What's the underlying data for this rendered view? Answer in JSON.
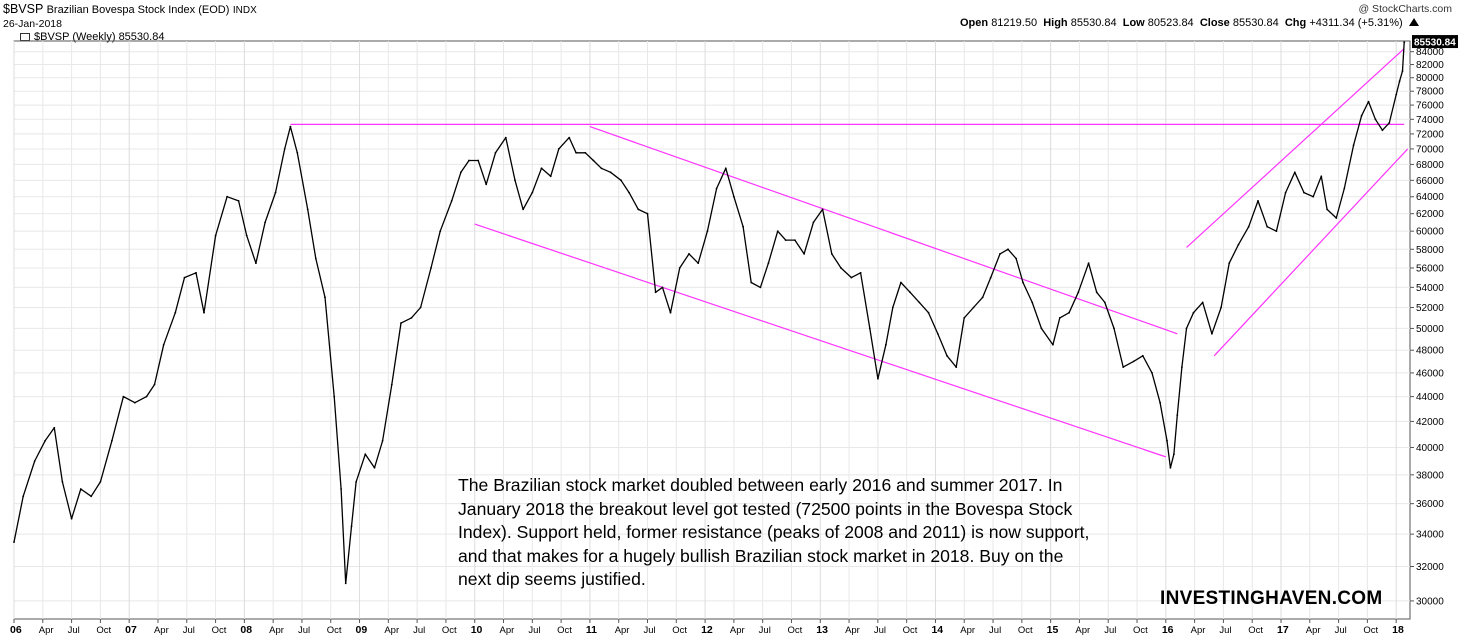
{
  "header": {
    "symbol": "$BVSP",
    "name": "Brazilian Bovespa Stock Index (EOD)",
    "exchange": "INDX",
    "date": "26-Jan-2018",
    "copyright": "@ StockCharts.com",
    "open_label": "Open",
    "open": "81219.50",
    "high_label": "High",
    "high": "85530.84",
    "low_label": "Low",
    "low": "80523.84",
    "close_label": "Close",
    "close": "85530.84",
    "chg_label": "Chg",
    "chg": "+4311.34 (+5.31%)",
    "chg_icon": "triangle-up-icon"
  },
  "legend": {
    "series": "$BVSP (Weekly) 85530.84"
  },
  "annotation": "The Brazilian stock market doubled between early 2016 and summer 2017. In January 2018 the breakout level got tested (72500 points in the Bovespa Stock Index). Support held, former resistance (peaks of 2008 and 2011) is now support, and that makes for a hugely bullish Brazilian stock market in 2018. Buy on the next dip seems justified.",
  "brand": "INVESTINGHAVEN.COM",
  "colors": {
    "line": "#000000",
    "trendline": "#ff33ff",
    "grid": "#e8e8e8",
    "price_tag_bg": "#000000",
    "price_tag_text": "#ffffff"
  },
  "chart_data": {
    "type": "line",
    "title": "$BVSP (Weekly) 85530.84",
    "xlabel": "",
    "ylabel": "",
    "x_range": [
      2006.0,
      2018.12
    ],
    "ylim": [
      29000,
      85700
    ],
    "y_scale": "log",
    "y_axis_position": "right",
    "grid": true,
    "y_ticks": [
      30000,
      32000,
      34000,
      36000,
      38000,
      40000,
      42000,
      44000,
      46000,
      48000,
      50000,
      52000,
      54000,
      56000,
      58000,
      60000,
      62000,
      64000,
      66000,
      68000,
      70000,
      72000,
      74000,
      76000,
      78000,
      80000,
      82000,
      84000
    ],
    "x_ticks": [
      {
        "x": 2006.0,
        "label": "06",
        "year": true
      },
      {
        "x": 2006.25,
        "label": "Apr"
      },
      {
        "x": 2006.5,
        "label": "Jul"
      },
      {
        "x": 2006.75,
        "label": "Oct"
      },
      {
        "x": 2007.0,
        "label": "07",
        "year": true
      },
      {
        "x": 2007.25,
        "label": "Apr"
      },
      {
        "x": 2007.5,
        "label": "Jul"
      },
      {
        "x": 2007.75,
        "label": "Oct"
      },
      {
        "x": 2008.0,
        "label": "08",
        "year": true
      },
      {
        "x": 2008.25,
        "label": "Apr"
      },
      {
        "x": 2008.5,
        "label": "Jul"
      },
      {
        "x": 2008.75,
        "label": "Oct"
      },
      {
        "x": 2009.0,
        "label": "09",
        "year": true
      },
      {
        "x": 2009.25,
        "label": "Apr"
      },
      {
        "x": 2009.5,
        "label": "Jul"
      },
      {
        "x": 2009.75,
        "label": "Oct"
      },
      {
        "x": 2010.0,
        "label": "10",
        "year": true
      },
      {
        "x": 2010.25,
        "label": "Apr"
      },
      {
        "x": 2010.5,
        "label": "Jul"
      },
      {
        "x": 2010.75,
        "label": "Oct"
      },
      {
        "x": 2011.0,
        "label": "11",
        "year": true
      },
      {
        "x": 2011.25,
        "label": "Apr"
      },
      {
        "x": 2011.5,
        "label": "Jul"
      },
      {
        "x": 2011.75,
        "label": "Oct"
      },
      {
        "x": 2012.0,
        "label": "12",
        "year": true
      },
      {
        "x": 2012.25,
        "label": "Apr"
      },
      {
        "x": 2012.5,
        "label": "Jul"
      },
      {
        "x": 2012.75,
        "label": "Oct"
      },
      {
        "x": 2013.0,
        "label": "13",
        "year": true
      },
      {
        "x": 2013.25,
        "label": "Apr"
      },
      {
        "x": 2013.5,
        "label": "Jul"
      },
      {
        "x": 2013.75,
        "label": "Oct"
      },
      {
        "x": 2014.0,
        "label": "14",
        "year": true
      },
      {
        "x": 2014.25,
        "label": "Apr"
      },
      {
        "x": 2014.5,
        "label": "Jul"
      },
      {
        "x": 2014.75,
        "label": "Oct"
      },
      {
        "x": 2015.0,
        "label": "15",
        "year": true
      },
      {
        "x": 2015.25,
        "label": "Apr"
      },
      {
        "x": 2015.5,
        "label": "Jul"
      },
      {
        "x": 2015.75,
        "label": "Oct"
      },
      {
        "x": 2016.0,
        "label": "16",
        "year": true
      },
      {
        "x": 2016.25,
        "label": "Apr"
      },
      {
        "x": 2016.5,
        "label": "Jul"
      },
      {
        "x": 2016.75,
        "label": "Oct"
      },
      {
        "x": 2017.0,
        "label": "17",
        "year": true
      },
      {
        "x": 2017.25,
        "label": "Apr"
      },
      {
        "x": 2017.5,
        "label": "Jul"
      },
      {
        "x": 2017.75,
        "label": "Oct"
      },
      {
        "x": 2018.0,
        "label": "18",
        "year": true
      }
    ],
    "series": [
      {
        "values": [
          [
            2006.0,
            33500
          ],
          [
            2006.08,
            36500
          ],
          [
            2006.18,
            39000
          ],
          [
            2006.27,
            40500
          ],
          [
            2006.35,
            41500
          ],
          [
            2006.42,
            37500
          ],
          [
            2006.5,
            35000
          ],
          [
            2006.58,
            37000
          ],
          [
            2006.67,
            36500
          ],
          [
            2006.75,
            37500
          ],
          [
            2006.85,
            40500
          ],
          [
            2006.95,
            44000
          ],
          [
            2007.05,
            43500
          ],
          [
            2007.15,
            44000
          ],
          [
            2007.22,
            45000
          ],
          [
            2007.3,
            48500
          ],
          [
            2007.4,
            51500
          ],
          [
            2007.48,
            55000
          ],
          [
            2007.58,
            55500
          ],
          [
            2007.65,
            51500
          ],
          [
            2007.75,
            59500
          ],
          [
            2007.85,
            64000
          ],
          [
            2007.95,
            63500
          ],
          [
            2008.02,
            59500
          ],
          [
            2008.1,
            56500
          ],
          [
            2008.18,
            61000
          ],
          [
            2008.27,
            64500
          ],
          [
            2008.35,
            70000
          ],
          [
            2008.4,
            73000
          ],
          [
            2008.46,
            69500
          ],
          [
            2008.55,
            62500
          ],
          [
            2008.62,
            57000
          ],
          [
            2008.7,
            53000
          ],
          [
            2008.78,
            44000
          ],
          [
            2008.84,
            37000
          ],
          [
            2008.88,
            31000
          ],
          [
            2008.93,
            34500
          ],
          [
            2008.97,
            37500
          ],
          [
            2009.05,
            39500
          ],
          [
            2009.13,
            38500
          ],
          [
            2009.2,
            40500
          ],
          [
            2009.28,
            45000
          ],
          [
            2009.36,
            50500
          ],
          [
            2009.45,
            51000
          ],
          [
            2009.53,
            52000
          ],
          [
            2009.62,
            56000
          ],
          [
            2009.7,
            60000
          ],
          [
            2009.8,
            63500
          ],
          [
            2009.88,
            67000
          ],
          [
            2009.95,
            68500
          ],
          [
            2010.03,
            68500
          ],
          [
            2010.1,
            65500
          ],
          [
            2010.18,
            69500
          ],
          [
            2010.27,
            71500
          ],
          [
            2010.35,
            66000
          ],
          [
            2010.42,
            62500
          ],
          [
            2010.5,
            64500
          ],
          [
            2010.58,
            67500
          ],
          [
            2010.66,
            66500
          ],
          [
            2010.73,
            70000
          ],
          [
            2010.82,
            71500
          ],
          [
            2010.88,
            69500
          ],
          [
            2010.96,
            69500
          ],
          [
            2011.03,
            68500
          ],
          [
            2011.1,
            67500
          ],
          [
            2011.18,
            67000
          ],
          [
            2011.27,
            66000
          ],
          [
            2011.34,
            64500
          ],
          [
            2011.42,
            62500
          ],
          [
            2011.5,
            62000
          ],
          [
            2011.57,
            53500
          ],
          [
            2011.63,
            54000
          ],
          [
            2011.7,
            51500
          ],
          [
            2011.78,
            56000
          ],
          [
            2011.86,
            57500
          ],
          [
            2011.94,
            56500
          ],
          [
            2012.02,
            60000
          ],
          [
            2012.1,
            65000
          ],
          [
            2012.18,
            67500
          ],
          [
            2012.25,
            64000
          ],
          [
            2012.33,
            60500
          ],
          [
            2012.4,
            54500
          ],
          [
            2012.48,
            54000
          ],
          [
            2012.55,
            56500
          ],
          [
            2012.63,
            60000
          ],
          [
            2012.7,
            59000
          ],
          [
            2012.78,
            59000
          ],
          [
            2012.86,
            57500
          ],
          [
            2012.94,
            61000
          ],
          [
            2013.02,
            62500
          ],
          [
            2013.1,
            57500
          ],
          [
            2013.18,
            56000
          ],
          [
            2013.27,
            55000
          ],
          [
            2013.35,
            55500
          ],
          [
            2013.43,
            50000
          ],
          [
            2013.5,
            45500
          ],
          [
            2013.57,
            48500
          ],
          [
            2013.63,
            52000
          ],
          [
            2013.7,
            54500
          ],
          [
            2013.78,
            53500
          ],
          [
            2013.86,
            52500
          ],
          [
            2013.94,
            51500
          ],
          [
            2014.02,
            49500
          ],
          [
            2014.1,
            47500
          ],
          [
            2014.18,
            46500
          ],
          [
            2014.25,
            51000
          ],
          [
            2014.33,
            52000
          ],
          [
            2014.41,
            53000
          ],
          [
            2014.48,
            55000
          ],
          [
            2014.56,
            57500
          ],
          [
            2014.63,
            58000
          ],
          [
            2014.7,
            57000
          ],
          [
            2014.76,
            54500
          ],
          [
            2014.84,
            52500
          ],
          [
            2014.92,
            50000
          ],
          [
            2015.02,
            48500
          ],
          [
            2015.08,
            51000
          ],
          [
            2015.16,
            51500
          ],
          [
            2015.24,
            53500
          ],
          [
            2015.33,
            56500
          ],
          [
            2015.4,
            53500
          ],
          [
            2015.47,
            52500
          ],
          [
            2015.55,
            50000
          ],
          [
            2015.63,
            46500
          ],
          [
            2015.72,
            47000
          ],
          [
            2015.8,
            47500
          ],
          [
            2015.88,
            46000
          ],
          [
            2015.95,
            43500
          ],
          [
            2016.01,
            40500
          ],
          [
            2016.04,
            38500
          ],
          [
            2016.07,
            39500
          ],
          [
            2016.1,
            42500
          ],
          [
            2016.14,
            46500
          ],
          [
            2016.18,
            50000
          ],
          [
            2016.24,
            51500
          ],
          [
            2016.32,
            52500
          ],
          [
            2016.4,
            49500
          ],
          [
            2016.48,
            52000
          ],
          [
            2016.55,
            56500
          ],
          [
            2016.63,
            58500
          ],
          [
            2016.72,
            60500
          ],
          [
            2016.8,
            63500
          ],
          [
            2016.88,
            60500
          ],
          [
            2016.96,
            60000
          ],
          [
            2017.04,
            64500
          ],
          [
            2017.12,
            67000
          ],
          [
            2017.2,
            64500
          ],
          [
            2017.28,
            64000
          ],
          [
            2017.35,
            66500
          ],
          [
            2017.4,
            62500
          ],
          [
            2017.48,
            61500
          ],
          [
            2017.55,
            65000
          ],
          [
            2017.63,
            70500
          ],
          [
            2017.7,
            74500
          ],
          [
            2017.76,
            76500
          ],
          [
            2017.82,
            74000
          ],
          [
            2017.88,
            72500
          ],
          [
            2017.94,
            73500
          ],
          [
            2018.0,
            77500
          ],
          [
            2018.03,
            79500
          ],
          [
            2018.055,
            81000
          ],
          [
            2018.07,
            85530.84
          ]
        ]
      }
    ],
    "trendlines": [
      {
        "x": [
          2008.4,
          2018.07
        ],
        "y": [
          73300,
          73300
        ]
      },
      {
        "x": [
          2011.0,
          2016.1
        ],
        "y": [
          73000,
          49500
        ]
      },
      {
        "x": [
          2010.0,
          2016.0
        ],
        "y": [
          60800,
          39300
        ]
      },
      {
        "x": [
          2016.18,
          2018.07
        ],
        "y": [
          58200,
          84500
        ]
      },
      {
        "x": [
          2016.42,
          2018.1
        ],
        "y": [
          47500,
          70000
        ]
      }
    ]
  }
}
